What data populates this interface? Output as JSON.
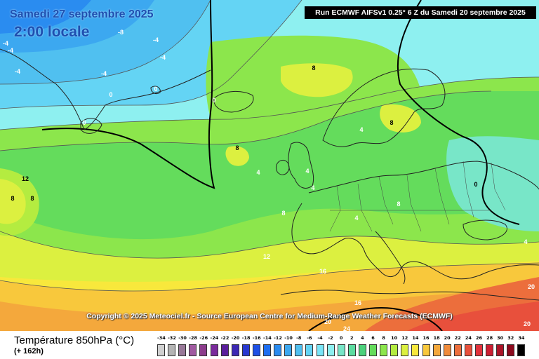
{
  "header": {
    "valid_date": "Samedi 27 septembre 2025",
    "valid_time": "2:00 locale",
    "run_info": "Run ECMWF AIFSv1 0.25° 6 Z du Samedi 20 septembre 2025"
  },
  "copyright": "Copyright © 2025 Meteociel.fr - Source European Centre for Medium-Range Weather Forecasts (ECMWF)",
  "legend": {
    "title": "Température 850hPa (°C)",
    "lead": "(+ 162h)",
    "ticks": [
      "-34",
      "-32",
      "-30",
      "-28",
      "-26",
      "-24",
      "-22",
      "-20",
      "-18",
      "-16",
      "-14",
      "-12",
      "-10",
      "-8",
      "-6",
      "-4",
      "-2",
      "0",
      "2",
      "4",
      "6",
      "8",
      "10",
      "12",
      "14",
      "16",
      "18",
      "20",
      "22",
      "24",
      "26",
      "28",
      "30",
      "32",
      "34"
    ],
    "colors": [
      "#d0d0d0",
      "#b4b4b4",
      "#987898",
      "#a05aa0",
      "#8c3c8c",
      "#7a2a9c",
      "#5a1e9c",
      "#3c28b4",
      "#2838d0",
      "#1e50e6",
      "#1e6ef0",
      "#2a8cf0",
      "#3ca8f0",
      "#50c0f0",
      "#64d4f4",
      "#7ae6f8",
      "#8ef0f0",
      "#78e6c8",
      "#5cdca0",
      "#4cd27c",
      "#64dc5c",
      "#8ce64c",
      "#b4ec40",
      "#dcf040",
      "#f8e83c",
      "#f8c83c",
      "#f4a83c",
      "#f08c3c",
      "#ec6e3c",
      "#e8503c",
      "#e0323c",
      "#cc1e32",
      "#aa1428",
      "#8c0a1e",
      "#000000"
    ]
  },
  "contour_labels": [
    {
      "text": "-8",
      "c": "#ffffff"
    },
    {
      "text": "-4",
      "c": "#ffffff"
    },
    {
      "text": "-4",
      "c": "#ffffff"
    },
    {
      "text": "-4",
      "c": "#ffffff"
    },
    {
      "text": "-4",
      "c": "#ffffff"
    },
    {
      "text": "-4",
      "c": "#ffffff"
    },
    {
      "text": "-4",
      "c": "#ffffff"
    },
    {
      "text": "0",
      "c": "#ffffff"
    },
    {
      "text": "0",
      "c": "#ffffff"
    },
    {
      "text": "0",
      "c": "#ffffff"
    },
    {
      "text": "0",
      "c": "#ffffff"
    },
    {
      "text": "0",
      "c": "#000000"
    },
    {
      "text": "8",
      "c": "#000000"
    },
    {
      "text": "8",
      "c": "#000000"
    },
    {
      "text": "8",
      "c": "#000000"
    },
    {
      "text": "12",
      "c": "#000000"
    },
    {
      "text": "8",
      "c": "#000000"
    },
    {
      "text": "8",
      "c": "#000000"
    },
    {
      "text": "4",
      "c": "#ffffff"
    },
    {
      "text": "4",
      "c": "#ffffff"
    },
    {
      "text": "4",
      "c": "#ffffff"
    },
    {
      "text": "4",
      "c": "#ffffff"
    },
    {
      "text": "4",
      "c": "#ffffff"
    },
    {
      "text": "8",
      "c": "#ffffff"
    },
    {
      "text": "8",
      "c": "#ffffff"
    },
    {
      "text": "4",
      "c": "#ffffff"
    },
    {
      "text": "12",
      "c": "#ffffff"
    },
    {
      "text": "16",
      "c": "#ffffff"
    },
    {
      "text": "16",
      "c": "#ffffff"
    },
    {
      "text": "20",
      "c": "#ffffff"
    },
    {
      "text": "24",
      "c": "#ffffff"
    },
    {
      "text": "20",
      "c": "#ffffff"
    },
    {
      "text": "20",
      "c": "#ffffff"
    }
  ]
}
